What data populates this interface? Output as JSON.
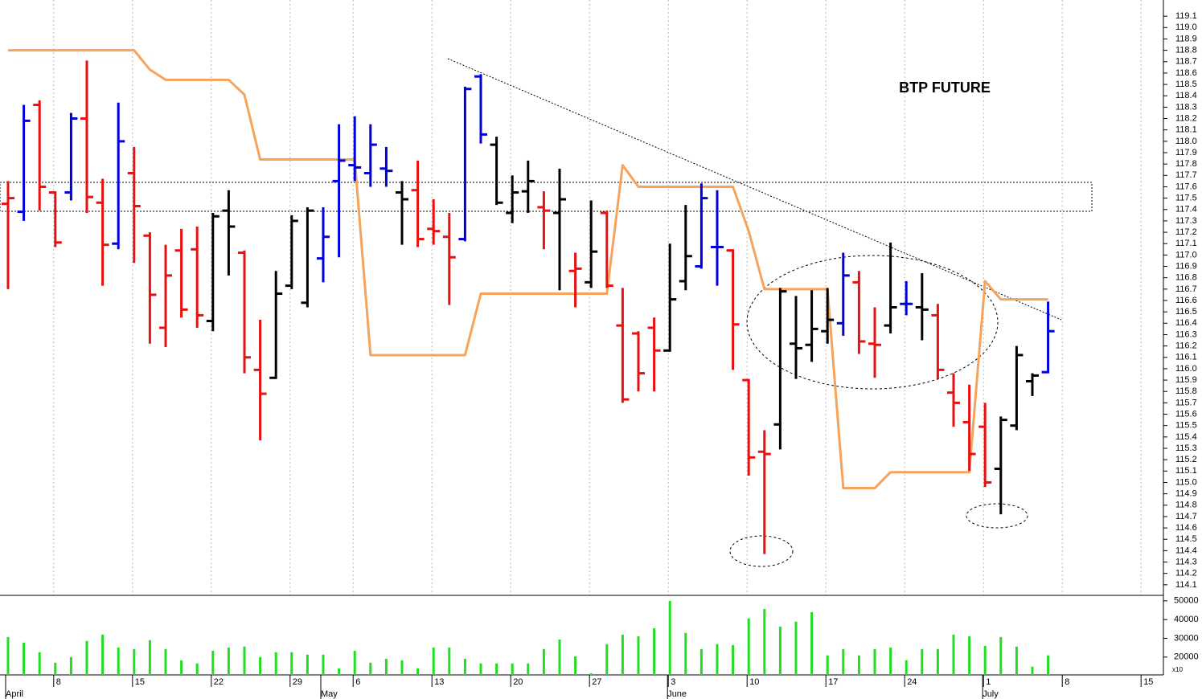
{
  "chart_data": {
    "type": "ohlc",
    "title": "BTP FUTURE",
    "categories": [
      null,
      null,
      null,
      "8",
      null,
      null,
      null,
      null,
      "15",
      null,
      null,
      null,
      null,
      "22",
      null,
      null,
      null,
      null,
      "29",
      null,
      null,
      null,
      "6",
      null,
      null,
      null,
      null,
      "13",
      null,
      null,
      null,
      null,
      "20",
      null,
      null,
      null,
      null,
      "27",
      null,
      null,
      null,
      null,
      "3",
      null,
      null,
      null,
      null,
      "10",
      null,
      null,
      null,
      null,
      "17",
      null,
      null,
      null,
      null,
      "24",
      null,
      null,
      null,
      null,
      "1",
      null,
      null,
      null,
      null,
      "8",
      null,
      null,
      null,
      null,
      "15",
      null
    ],
    "months": [
      "April",
      null,
      null,
      null,
      null,
      null,
      null,
      null,
      null,
      null,
      null,
      null,
      null,
      null,
      null,
      null,
      null,
      null,
      null,
      null,
      "May",
      null,
      null,
      null,
      null,
      null,
      null,
      null,
      null,
      null,
      null,
      null,
      null,
      null,
      null,
      null,
      null,
      null,
      null,
      null,
      null,
      null,
      "June",
      null,
      null,
      null,
      null,
      null,
      null,
      null,
      null,
      null,
      null,
      null,
      null,
      null,
      null,
      null,
      null,
      null,
      null,
      null,
      "July",
      null,
      null,
      null,
      null,
      null,
      null,
      null,
      null,
      null,
      null,
      null
    ],
    "open": [
      117.45,
      117.38,
      118.32,
      117.55,
      117.55,
      118.2,
      117.46,
      117.1,
      117.72,
      117.17,
      116.36,
      117.04,
      117.05,
      116.42,
      117.39,
      117.02,
      115.99,
      115.92,
      116.73,
      116.58,
      116.97,
      117.65,
      117.79,
      117.72,
      117.76,
      117.55,
      117.57,
      117.23,
      117.16,
      117.14,
      118.57,
      117.97,
      117.37,
      117.56,
      117.42,
      117.37,
      116.86,
      116.76,
      117.37,
      116.38,
      116.31,
      116.36,
      116.16,
      116.77,
      116.9,
      117.07,
      117.04,
      115.9,
      115.27,
      115.51,
      116.22,
      116.21,
      116.33,
      116.4,
      116.76,
      116.22,
      116.38,
      116.57,
      116.54,
      116.47,
      115.79,
      115.53,
      115.49,
      115.12,
      115.5,
      115.89,
      115.97,
      null,
      null,
      null,
      null,
      null,
      null,
      null
    ],
    "high": [
      117.65,
      118.32,
      118.36,
      117.56,
      118.25,
      118.71,
      117.67,
      118.34,
      117.95,
      117.2,
      117.09,
      117.23,
      117.25,
      117.37,
      117.57,
      117.04,
      116.43,
      116.86,
      117.35,
      117.42,
      117.42,
      118.15,
      118.22,
      118.15,
      117.95,
      117.65,
      117.83,
      117.49,
      117.37,
      118.48,
      118.59,
      118.04,
      117.7,
      117.83,
      117.56,
      117.76,
      117.02,
      117.48,
      117.39,
      116.71,
      116.33,
      116.45,
      117.1,
      117.44,
      117.63,
      117.57,
      117.05,
      115.91,
      115.46,
      116.71,
      116.64,
      116.69,
      116.71,
      117.02,
      116.86,
      116.54,
      117.11,
      116.77,
      116.84,
      116.57,
      115.96,
      115.86,
      115.7,
      115.58,
      116.2,
      115.96,
      116.59,
      null,
      null,
      null,
      null,
      null,
      null,
      null
    ],
    "low": [
      116.7,
      117.3,
      117.39,
      117.07,
      117.48,
      117.37,
      116.73,
      117.05,
      116.93,
      116.22,
      116.19,
      116.45,
      116.36,
      116.33,
      116.82,
      115.96,
      115.37,
      115.91,
      116.7,
      116.54,
      116.76,
      116.98,
      117.65,
      117.6,
      117.6,
      117.09,
      117.07,
      117.09,
      116.56,
      117.12,
      117.98,
      117.44,
      117.28,
      117.37,
      117.05,
      116.69,
      116.54,
      116.71,
      116.71,
      115.7,
      115.8,
      115.8,
      116.15,
      116.69,
      116.88,
      116.73,
      115.99,
      115.06,
      114.37,
      115.29,
      115.91,
      116.06,
      116.22,
      116.29,
      116.13,
      115.92,
      116.31,
      116.47,
      116.25,
      115.91,
      115.49,
      115.1,
      114.96,
      114.72,
      115.46,
      115.76,
      115.96,
      null,
      null,
      null,
      null,
      null,
      null,
      null
    ],
    "close": [
      117.5,
      118.18,
      117.6,
      117.11,
      118.2,
      117.51,
      117.09,
      118.0,
      117.43,
      116.65,
      116.82,
      116.52,
      116.47,
      117.34,
      117.25,
      116.1,
      115.78,
      116.66,
      117.3,
      117.39,
      117.16,
      117.83,
      117.77,
      117.97,
      117.74,
      117.49,
      117.14,
      117.21,
      116.98,
      118.46,
      118.06,
      117.46,
      117.55,
      117.65,
      117.39,
      117.49,
      116.88,
      117.03,
      116.73,
      115.73,
      115.96,
      116.16,
      116.61,
      116.99,
      117.5,
      117.07,
      116.39,
      115.22,
      115.25,
      116.68,
      116.18,
      116.35,
      116.43,
      116.82,
      116.24,
      116.21,
      116.54,
      116.57,
      116.52,
      115.99,
      115.7,
      115.25,
      115.0,
      115.55,
      116.12,
      115.94,
      116.33,
      null,
      null,
      null,
      null,
      null,
      null,
      null
    ],
    "bar_colors": [
      "#e81010",
      "#0000dd",
      "#e81010",
      "#e81010",
      "#0000dd",
      "#e81010",
      "#e81010",
      "#0000dd",
      "#e81010",
      "#e81010",
      "#e81010",
      "#e81010",
      "#e81010",
      "#000000",
      "#000000",
      "#e81010",
      "#e81010",
      "#000000",
      "#000000",
      "#000000",
      "#0000dd",
      "#0000dd",
      "#0000dd",
      "#0000dd",
      "#0000dd",
      "#000000",
      "#e81010",
      "#e81010",
      "#e81010",
      "#0000dd",
      "#0000dd",
      "#000000",
      "#000000",
      "#000000",
      "#e81010",
      "#000000",
      "#e81010",
      "#000000",
      "#e81010",
      "#e81010",
      "#e81010",
      "#e81010",
      "#000000",
      "#000000",
      "#0000dd",
      "#0000dd",
      "#e81010",
      "#e81010",
      "#e81010",
      "#000000",
      "#000000",
      "#000000",
      "#000000",
      "#0000dd",
      "#e81010",
      "#e81010",
      "#000000",
      "#0000dd",
      "#000000",
      "#e81010",
      "#e81010",
      "#e81010",
      "#e81010",
      "#000000",
      "#000000",
      "#000000",
      "#0000dd",
      null,
      null,
      null,
      null,
      null,
      null,
      null
    ],
    "ylim": [
      114.0,
      119.2
    ],
    "yticks": [
      114.1,
      114.2,
      114.3,
      114.4,
      114.5,
      114.6,
      114.7,
      114.8,
      114.9,
      {
        "value": 115.0,
        "label": "115.0"
      },
      115.1,
      115.2,
      115.3,
      115.4,
      115.5,
      115.6,
      115.7,
      115.8,
      115.9,
      {
        "value": 116.0,
        "label": "116.0"
      },
      116.1,
      116.2,
      116.3,
      116.4,
      116.5,
      116.6,
      116.7,
      116.8,
      116.9,
      {
        "value": 117.0,
        "label": "117.0"
      },
      117.1,
      117.2,
      117.3,
      117.4,
      117.5,
      117.6,
      117.7,
      117.8,
      117.9,
      {
        "value": 118.0,
        "label": "118.0"
      },
      118.1,
      118.2,
      118.3,
      118.4,
      118.5,
      118.6,
      118.7,
      118.8,
      118.9,
      {
        "value": 119.0,
        "label": "119.0"
      },
      119.1
    ],
    "grid": "x",
    "overlay": {
      "type": "line",
      "color": "#f7a35c",
      "values": [
        118.8,
        118.8,
        118.8,
        118.8,
        118.8,
        118.8,
        118.8,
        118.8,
        118.8,
        118.63,
        118.54,
        118.54,
        118.54,
        118.54,
        118.54,
        118.41,
        117.84,
        117.84,
        117.84,
        117.84,
        117.84,
        117.84,
        117.84,
        116.12,
        116.12,
        116.12,
        116.12,
        116.12,
        116.12,
        116.12,
        116.66,
        116.66,
        116.66,
        116.66,
        116.66,
        116.66,
        116.66,
        116.66,
        116.66,
        117.79,
        117.6,
        117.6,
        117.6,
        117.6,
        117.6,
        117.6,
        117.6,
        117.21,
        116.7,
        116.7,
        116.7,
        116.7,
        116.7,
        114.95,
        114.95,
        114.95,
        115.09,
        115.09,
        115.09,
        115.09,
        115.09,
        115.09,
        116.77,
        116.61,
        116.61,
        116.61,
        116.61,
        null,
        null,
        null,
        null,
        null,
        null,
        null
      ]
    },
    "volume": {
      "type": "bar",
      "color": "#22dd22",
      "values": [
        30700,
        27700,
        22600,
        17000,
        20000,
        28600,
        32000,
        25100,
        24300,
        29000,
        24300,
        18300,
        16600,
        23400,
        25100,
        25600,
        20000,
        22600,
        22600,
        21300,
        21300,
        14000,
        23400,
        17000,
        19100,
        18300,
        14000,
        25100,
        25100,
        19100,
        16600,
        16600,
        16600,
        16600,
        24300,
        29400,
        20400,
        11400,
        26900,
        32000,
        31100,
        35400,
        50000,
        32900,
        24300,
        26900,
        26400,
        40600,
        45700,
        36300,
        38900,
        44000,
        20900,
        24300,
        20900,
        24300,
        25100,
        18300,
        24300,
        24300,
        32000,
        31100,
        26000,
        30700,
        25600,
        14900,
        20900,
        null,
        null,
        null,
        null,
        null,
        null,
        null
      ],
      "ylim": [
        10500,
        52500
      ],
      "yticks": [
        20000,
        30000,
        40000,
        50000
      ],
      "unit_label": "x10"
    }
  }
}
